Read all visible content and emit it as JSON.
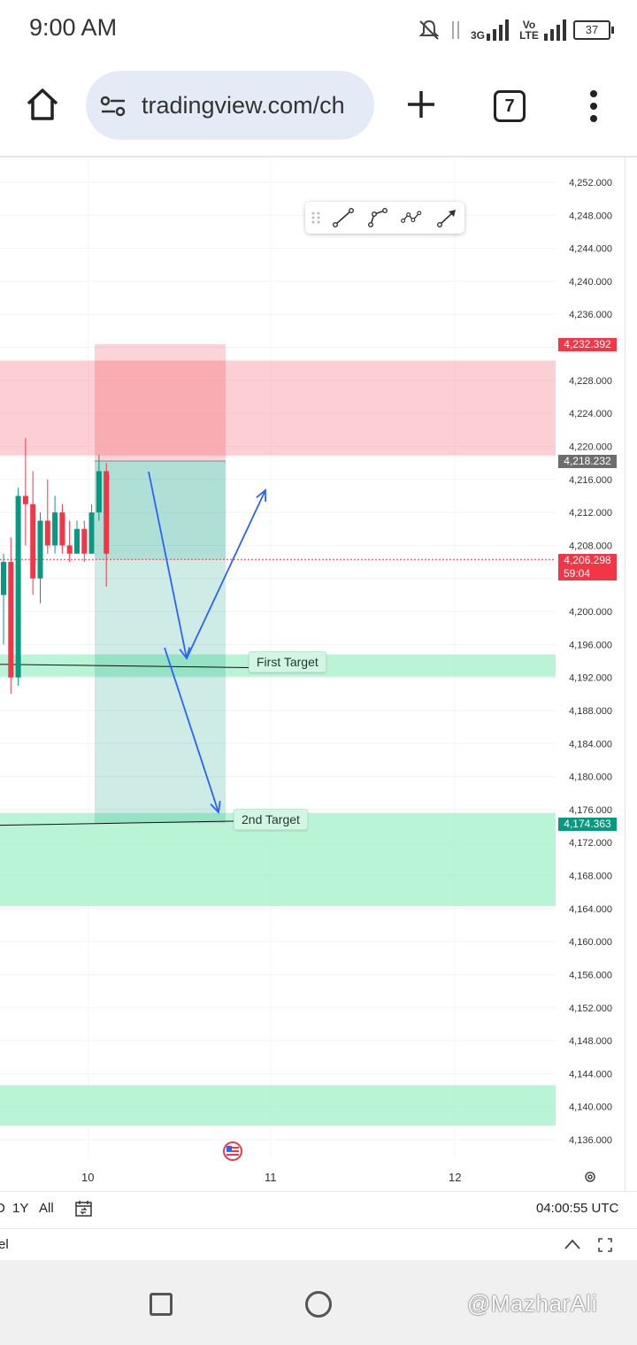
{
  "status_bar": {
    "time": "9:00 AM",
    "network_1": "3G",
    "network_2": "Vo LTE",
    "battery": "37",
    "icons": [
      "notifications-off-icon",
      "data-transfer-icon",
      "signal-icon",
      "signal-icon",
      "battery-icon"
    ]
  },
  "browser": {
    "url": "tradingview.com/ch",
    "tab_count": "7",
    "icons": [
      "home-icon",
      "site-settings-icon",
      "new-tab-icon",
      "more-icon"
    ]
  },
  "chart": {
    "price_axis_labels": [
      "4,252.000",
      "4,248.000",
      "4,244.000",
      "4,240.000",
      "4,236.000",
      "4,228.000",
      "4,224.000",
      "4,220.000",
      "4,216.000",
      "4,212.000",
      "4,208.000",
      "4,200.000",
      "4,196.000",
      "4,192.000",
      "4,188.000",
      "4,184.000",
      "4,180.000",
      "4,176.000",
      "4,172.000",
      "4,168.000",
      "4,164.000",
      "4,160.000",
      "4,156.000",
      "4,152.000",
      "4,148.000",
      "4,144.000",
      "4,140.000",
      "4,136.000"
    ],
    "price_tags": {
      "stop": "4,232.392",
      "entry": "4,218.232",
      "current": "4,206.298",
      "countdown": "59:04",
      "target": "4,174.363"
    },
    "time_labels": [
      "10",
      "11",
      "12"
    ],
    "annotations": {
      "first_target": "First Target",
      "second_target": "2nd Target"
    },
    "colors": {
      "supply_zone": "#f7a8ae",
      "demand_zone": "#9df0c4",
      "bull_candle": "#089981",
      "bear_candle": "#f23645",
      "arrow": "#2962ff"
    },
    "candles": [
      {
        "o": 4202,
        "h": 4207,
        "l": 4196,
        "c": 4206
      },
      {
        "o": 4206,
        "h": 4209,
        "l": 4190,
        "c": 4192
      },
      {
        "o": 4192,
        "h": 4215,
        "l": 4191,
        "c": 4214
      },
      {
        "o": 4214,
        "h": 4221,
        "l": 4208,
        "c": 4213
      },
      {
        "o": 4213,
        "h": 4217,
        "l": 4202,
        "c": 4204
      },
      {
        "o": 4204,
        "h": 4212,
        "l": 4201,
        "c": 4211
      },
      {
        "o": 4211,
        "h": 4216,
        "l": 4207,
        "c": 4208
      },
      {
        "o": 4208,
        "h": 4214,
        "l": 4207,
        "c": 4212
      },
      {
        "o": 4212,
        "h": 4213,
        "l": 4207,
        "c": 4208
      },
      {
        "o": 4208,
        "h": 4211,
        "l": 4206,
        "c": 4207
      },
      {
        "o": 4207,
        "h": 4211,
        "l": 4207,
        "c": 4210
      },
      {
        "o": 4210,
        "h": 4211,
        "l": 4206,
        "c": 4207
      },
      {
        "o": 4207,
        "h": 4213,
        "l": 4207,
        "c": 4212
      },
      {
        "o": 4212,
        "h": 4219,
        "l": 4211,
        "c": 4217
      },
      {
        "o": 4217,
        "h": 4218,
        "l": 4203,
        "c": 4207
      }
    ]
  },
  "toolbar_bottom": {
    "range_partial": "D",
    "range_1y": "1Y",
    "range_all": "All",
    "utc_time": "04:00:55 UTC",
    "panel_partial": "el"
  },
  "watermark": "@MazharAli"
}
